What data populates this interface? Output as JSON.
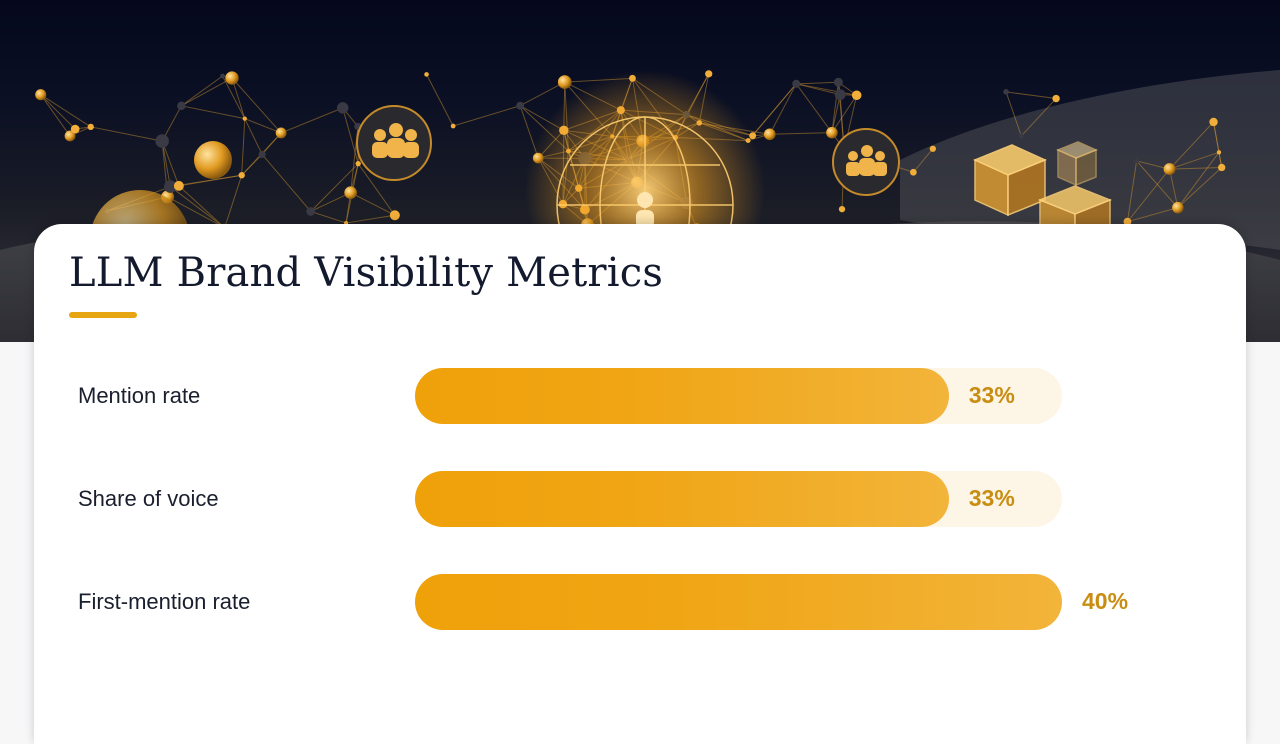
{
  "title": "LLM Brand Visibility Metrics",
  "colors": {
    "accent": "#e8a512",
    "bar_fill": "#f0a514",
    "bar_track": "#fdf5e6",
    "value_text": "#c98d12",
    "title_text": "#141a2e"
  },
  "banner": {
    "icons": [
      "people-group-icon",
      "network-globe-icon",
      "person-icon",
      "cube-icon"
    ]
  },
  "chart_data": {
    "type": "bar",
    "orientation": "horizontal",
    "title": "LLM Brand Visibility Metrics",
    "categories": [
      "Mention rate",
      "Share of voice",
      "First-mention rate"
    ],
    "values": [
      33,
      33,
      40
    ],
    "value_labels": [
      "33%",
      "33%",
      "40%"
    ],
    "unit": "%",
    "xlim": [
      0,
      40
    ],
    "grid": false,
    "legend": "none"
  }
}
